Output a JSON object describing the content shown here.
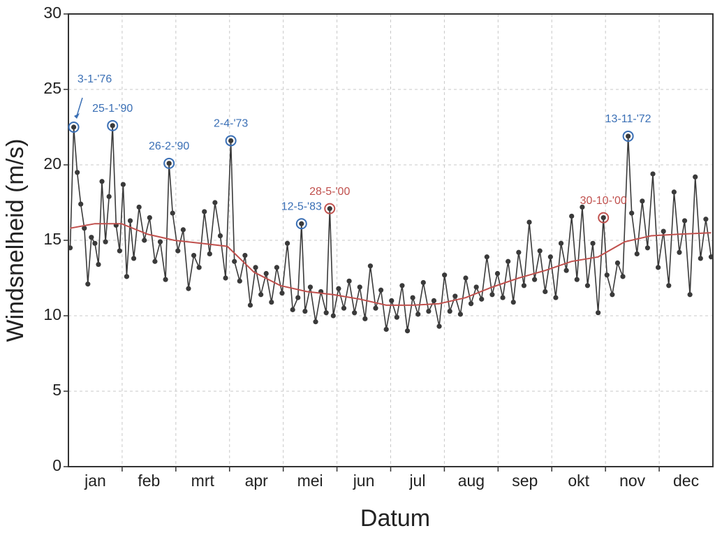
{
  "chart_data": {
    "type": "line",
    "xlabel": "Datum",
    "ylabel": "Windsnelheid (m/s)",
    "xlim": [
      0,
      365
    ],
    "ylim": [
      0,
      30
    ],
    "yticks": [
      0,
      5,
      10,
      15,
      20,
      25,
      30
    ],
    "categories": [
      "jan",
      "feb",
      "mrt",
      "apr",
      "mei",
      "jun",
      "jul",
      "aug",
      "sep",
      "okt",
      "nov",
      "dec"
    ],
    "grid": true,
    "series": [
      {
        "color": "#3a3a3a",
        "x": [
          1,
          3,
          5,
          7,
          9,
          11,
          13,
          15,
          17,
          19,
          21,
          23,
          25,
          27,
          29,
          31,
          33,
          35,
          37,
          40,
          43,
          46,
          49,
          52,
          55,
          57,
          59,
          62,
          65,
          68,
          71,
          74,
          77,
          80,
          83,
          86,
          89,
          92,
          94,
          97,
          100,
          103,
          106,
          109,
          112,
          115,
          118,
          121,
          124,
          127,
          130,
          132,
          134,
          137,
          140,
          143,
          146,
          148,
          150,
          153,
          156,
          159,
          162,
          165,
          168,
          171,
          174,
          177,
          180,
          183,
          186,
          189,
          192,
          195,
          198,
          201,
          204,
          207,
          210,
          213,
          216,
          219,
          222,
          225,
          228,
          231,
          234,
          237,
          240,
          243,
          246,
          249,
          252,
          255,
          258,
          261,
          264,
          267,
          270,
          273,
          276,
          279,
          282,
          285,
          288,
          291,
          294,
          297,
          300,
          303,
          305,
          308,
          311,
          314,
          317,
          319,
          322,
          325,
          328,
          331,
          334,
          337,
          340,
          343,
          346,
          349,
          352,
          355,
          358,
          361,
          364
        ],
        "values": [
          14.5,
          22.5,
          19.5,
          17.4,
          15.8,
          12.1,
          15.2,
          14.8,
          13.4,
          18.9,
          14.9,
          17.9,
          22.6,
          16.0,
          14.3,
          18.7,
          12.6,
          16.3,
          13.8,
          17.2,
          15.0,
          16.5,
          13.6,
          14.9,
          12.4,
          20.1,
          16.8,
          14.3,
          15.7,
          11.8,
          14.0,
          13.2,
          16.9,
          14.1,
          17.5,
          15.3,
          12.5,
          21.6,
          13.6,
          12.3,
          14.0,
          10.7,
          13.2,
          11.4,
          12.8,
          10.9,
          13.2,
          11.5,
          14.8,
          10.4,
          11.2,
          16.1,
          10.3,
          11.9,
          9.6,
          11.6,
          10.2,
          17.1,
          10.0,
          11.8,
          10.5,
          12.3,
          10.2,
          11.9,
          9.8,
          13.3,
          10.5,
          11.7,
          9.1,
          11.0,
          9.9,
          12.0,
          9.0,
          11.2,
          10.1,
          12.2,
          10.3,
          11.0,
          9.3,
          12.7,
          10.3,
          11.3,
          10.1,
          12.5,
          10.8,
          11.9,
          11.1,
          13.9,
          11.4,
          12.8,
          11.2,
          13.6,
          10.9,
          14.2,
          12.0,
          16.2,
          12.4,
          14.3,
          11.6,
          13.9,
          11.2,
          14.8,
          13.0,
          16.6,
          12.4,
          17.2,
          12.0,
          14.8,
          10.2,
          16.5,
          12.7,
          11.4,
          13.5,
          12.6,
          21.9,
          16.8,
          14.1,
          17.6,
          14.5,
          19.4,
          13.2,
          15.6,
          12.0,
          18.2,
          14.2,
          16.3,
          11.4,
          19.2,
          13.8,
          16.4,
          13.9
        ]
      },
      {
        "color": "#c0504d",
        "x": [
          1,
          15,
          30,
          45,
          60,
          75,
          90,
          105,
          120,
          135,
          150,
          165,
          180,
          195,
          210,
          225,
          240,
          255,
          270,
          285,
          300,
          315,
          330,
          345,
          364
        ],
        "values": [
          15.8,
          16.1,
          16.1,
          15.4,
          15.0,
          14.8,
          14.6,
          12.9,
          12.0,
          11.6,
          11.4,
          11.1,
          10.7,
          10.7,
          10.8,
          11.2,
          11.9,
          12.5,
          13.0,
          13.6,
          13.9,
          14.9,
          15.3,
          15.4,
          15.5
        ]
      }
    ],
    "annotations": [
      {
        "label": "3-1-'76",
        "x": 3,
        "y": 22.5,
        "color": "#3a6fb5"
      },
      {
        "label": "25-1-'90",
        "x": 25,
        "y": 22.6,
        "color": "#3a6fb5"
      },
      {
        "label": "26-2-'90",
        "x": 57,
        "y": 20.1,
        "color": "#3a6fb5"
      },
      {
        "label": "2-4-'73",
        "x": 92,
        "y": 21.6,
        "color": "#3a6fb5"
      },
      {
        "label": "12-5-'83",
        "x": 132,
        "y": 16.1,
        "color": "#3a6fb5"
      },
      {
        "label": "28-5-'00",
        "x": 148,
        "y": 17.1,
        "color": "#c0504d"
      },
      {
        "label": "30-10-'00",
        "x": 303,
        "y": 16.5,
        "color": "#c0504d"
      },
      {
        "label": "13-11-'72",
        "x": 317,
        "y": 21.9,
        "color": "#3a6fb5"
      }
    ]
  }
}
